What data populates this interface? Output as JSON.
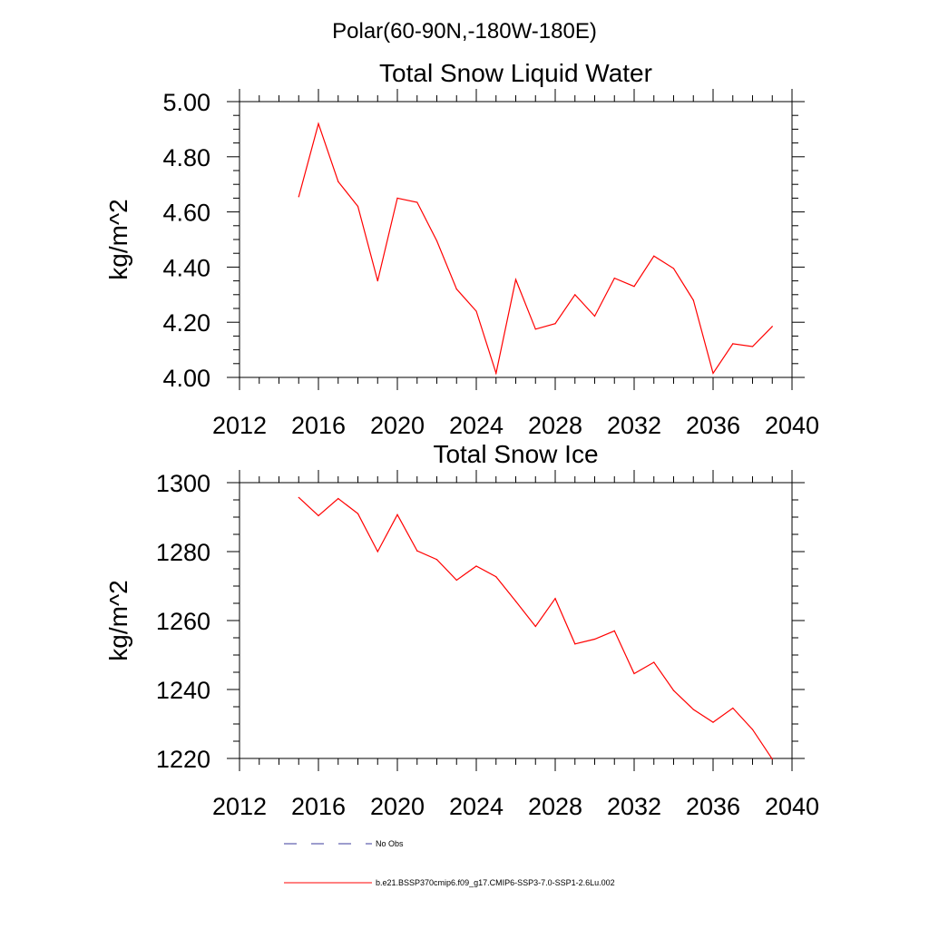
{
  "figure": {
    "title": "Polar(60-90N,-180W-180E)"
  },
  "colors": {
    "series_line": "#ff0000",
    "obs_line": "#3b3b9e",
    "axis": "#000000",
    "background": "#ffffff"
  },
  "chart_data": [
    {
      "type": "line",
      "title": "Total Snow Liquid Water",
      "xlabel": "",
      "ylabel": "kg/m^2",
      "xlim": [
        2012,
        2040
      ],
      "ylim": [
        4.0,
        5.0
      ],
      "xticks": [
        2012,
        2016,
        2020,
        2024,
        2028,
        2032,
        2036,
        2040
      ],
      "xtick_labels": [
        "2012",
        "2016",
        "2020",
        "2024",
        "2028",
        "2032",
        "2036",
        "2040"
      ],
      "yticks": [
        4.0,
        4.2,
        4.4,
        4.6,
        4.8,
        5.0
      ],
      "ytick_labels": [
        "4.00",
        "4.20",
        "4.40",
        "4.60",
        "4.80",
        "5.00"
      ],
      "grid": false,
      "series": [
        {
          "name": "b.e21.BSSP370cmip6.f09_g17.CMIP6-SSP3-7.0-SSP1-2.6Lu.002",
          "x": [
            2015,
            2016,
            2017,
            2018,
            2019,
            2020,
            2021,
            2022,
            2023,
            2024,
            2025,
            2026,
            2027,
            2028,
            2029,
            2030,
            2031,
            2032,
            2033,
            2034,
            2035,
            2036,
            2037,
            2038,
            2039
          ],
          "y": [
            4.655,
            4.92,
            4.71,
            4.62,
            4.35,
            4.65,
            4.635,
            4.495,
            4.32,
            4.24,
            4.015,
            4.355,
            4.175,
            4.195,
            4.3,
            4.222,
            4.36,
            4.33,
            4.44,
            4.395,
            4.28,
            4.015,
            4.122,
            4.112,
            4.185
          ]
        }
      ]
    },
    {
      "type": "line",
      "title": "Total Snow Ice",
      "xlabel": "",
      "ylabel": "kg/m^2",
      "xlim": [
        2012,
        2040
      ],
      "ylim": [
        1220,
        1300
      ],
      "xticks": [
        2012,
        2016,
        2020,
        2024,
        2028,
        2032,
        2036,
        2040
      ],
      "xtick_labels": [
        "2012",
        "2016",
        "2020",
        "2024",
        "2028",
        "2032",
        "2036",
        "2040"
      ],
      "yticks": [
        1220,
        1240,
        1260,
        1280,
        1300
      ],
      "ytick_labels": [
        "1220",
        "1240",
        "1260",
        "1280",
        "1300"
      ],
      "grid": false,
      "series": [
        {
          "name": "b.e21.BSSP370cmip6.f09_g17.CMIP6-SSP3-7.0-SSP1-2.6Lu.002",
          "x": [
            2015,
            2016,
            2017,
            2018,
            2019,
            2020,
            2021,
            2022,
            2023,
            2024,
            2025,
            2026,
            2027,
            2028,
            2029,
            2030,
            2031,
            2032,
            2033,
            2034,
            2035,
            2036,
            2037,
            2038,
            2039
          ],
          "y": [
            1295.7,
            1290.4,
            1295.4,
            1291.0,
            1280.0,
            1290.7,
            1280.2,
            1277.7,
            1271.7,
            1275.8,
            1272.7,
            1265.6,
            1258.3,
            1266.4,
            1253.2,
            1254.6,
            1257.0,
            1244.6,
            1247.9,
            1239.7,
            1234.2,
            1230.5,
            1234.6,
            1228.4,
            1219.8
          ]
        }
      ]
    }
  ],
  "legend": {
    "items": [
      {
        "label": "No Obs",
        "style": "dashed"
      },
      {
        "label": "b.e21.BSSP370cmip6.f09_g17.CMIP6-SSP3-7.0-SSP1-2.6Lu.002",
        "style": "solid"
      }
    ]
  }
}
